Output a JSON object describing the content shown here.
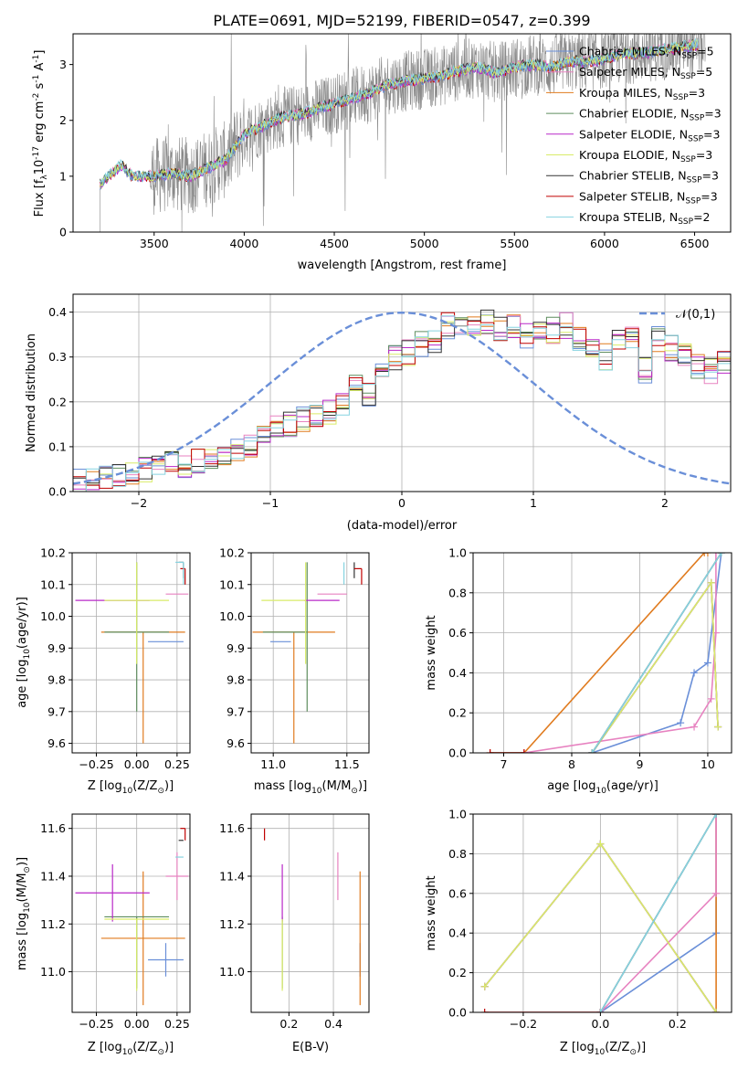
{
  "figure_title": "PLATE=0691, MJD=52199, FIBERID=0547, z=0.399",
  "legend_labels": [
    "Chabrier MILES, N",
    "Salpeter MILES, N",
    "Kroupa MILES, N",
    "Chabrier ELODIE, N",
    "Salpeter ELODIE, N",
    "Kroupa ELODIE, N",
    "Chabrier STELIB, N",
    "Salpeter STELIB, N",
    "Kroupa STELIB, N"
  ],
  "legend_subscript": "SSP",
  "legend_counts": [
    "=5",
    "=5",
    "=3",
    "=3",
    "=3",
    "=3",
    "=3",
    "=3",
    "=2"
  ],
  "colors": {
    "blue": "#6a8fd8",
    "orange": "#e07b1f",
    "pink": "#e782c0",
    "green": "#5f8e5f",
    "purple": "#b928c8",
    "yellow": "#d9ec68",
    "black": "#333333",
    "red": "#c00000",
    "cyan": "#86d3e0",
    "data": "#8a8a8a",
    "grid": "#b0b0b0"
  },
  "chart_data": [
    {
      "id": "spectrum",
      "type": "line",
      "xlabel": "wavelength [Angstrom, rest frame]",
      "ylabel_main": "Flux [f",
      "ylabel_sub": "λ",
      "ylabel_rest": "10",
      "ylabel_exp1": "-17",
      "ylabel_units": " erg cm",
      "ylabel_exp2": "-2",
      "ylabel_s": " s",
      "ylabel_exp3": "-1",
      "ylabel_A": " A",
      "ylabel_exp4": "-1",
      "ylabel_end": "]",
      "xlim": [
        3050,
        6700
      ],
      "ylim": [
        0,
        3.55
      ],
      "xticks": [
        3500,
        4000,
        4500,
        5000,
        5500,
        6000,
        6500
      ],
      "yticks": [
        0,
        1,
        2,
        3
      ],
      "model_anchor_x": [
        3200,
        3260,
        3320,
        3380,
        3500,
        3600,
        3700,
        3800,
        3900,
        4000,
        4100,
        4200,
        4300,
        4400,
        4500,
        4600,
        4700,
        4800,
        4900,
        5000,
        5100,
        5200,
        5300,
        5400,
        5500,
        5600,
        5700,
        5800,
        5900,
        6000,
        6100,
        6200,
        6300,
        6400,
        6500
      ],
      "model_anchor_y": [
        0.85,
        1.05,
        1.2,
        1.0,
        1.0,
        1.05,
        1.0,
        1.15,
        1.3,
        1.75,
        1.9,
        2.05,
        2.1,
        2.2,
        2.3,
        2.4,
        2.5,
        2.65,
        2.7,
        2.75,
        2.8,
        2.9,
        2.95,
        2.85,
        2.95,
        3.0,
        2.95,
        3.05,
        3.05,
        3.1,
        3.2,
        3.2,
        3.25,
        3.3,
        3.35
      ],
      "data_range": [
        3200,
        6560
      ],
      "model_range": [
        3200,
        6520
      ]
    },
    {
      "id": "residuals",
      "type": "step",
      "xlabel": "(data-model)/error",
      "ylabel": "Normed distribution",
      "xlim": [
        -2.5,
        2.5
      ],
      "ylim": [
        0,
        0.44
      ],
      "xticks": [
        -2,
        -1,
        0,
        1,
        2
      ],
      "yticks": [
        0.0,
        0.1,
        0.2,
        0.3,
        0.4
      ],
      "gaussian_label": "𝒩(0,1)",
      "bin_width": 0.1,
      "bin_start": -2.5,
      "base_values": [
        0.02,
        0.025,
        0.03,
        0.035,
        0.045,
        0.05,
        0.055,
        0.06,
        0.06,
        0.065,
        0.08,
        0.085,
        0.09,
        0.1,
        0.12,
        0.14,
        0.15,
        0.16,
        0.17,
        0.18,
        0.2,
        0.23,
        0.22,
        0.28,
        0.3,
        0.31,
        0.33,
        0.34,
        0.37,
        0.38,
        0.37,
        0.38,
        0.36,
        0.37,
        0.35,
        0.37,
        0.36,
        0.37,
        0.34,
        0.32,
        0.3,
        0.33,
        0.34,
        0.27,
        0.34,
        0.32,
        0.3,
        0.28,
        0.27,
        0.29
      ]
    },
    {
      "id": "age_vs_Z",
      "type": "errorbar",
      "xlabel_pre": "Z [log",
      "xlabel_sub": "10",
      "xlabel_post": "(Z/Z",
      "xlabel_sun": "⊙",
      "xlabel_end": ")]",
      "ylabel_pre": "age  [log",
      "ylabel_sub": "10",
      "ylabel_post": "(age/yr)]",
      "xlim": [
        -0.4,
        0.33
      ],
      "ylim": [
        9.57,
        10.2
      ],
      "xticks": [
        -0.25,
        0.0,
        0.25
      ],
      "yticks": [
        9.6,
        9.7,
        9.8,
        9.9,
        10.0,
        10.1,
        10.2
      ]
    },
    {
      "id": "age_vs_mass",
      "type": "errorbar",
      "xlabel_pre": "mass [log",
      "xlabel_sub": "10",
      "xlabel_post": "(M/M",
      "xlabel_sun": "⊙",
      "xlabel_end": ")]",
      "xlim": [
        10.85,
        11.65
      ],
      "ylim": [
        9.57,
        10.2
      ],
      "xticks": [
        11.0,
        11.5
      ],
      "yticks": [
        9.6,
        9.7,
        9.8,
        9.9,
        10.0,
        10.1,
        10.2
      ]
    },
    {
      "id": "cumweight_age",
      "type": "line",
      "xlabel_pre": "age  [log",
      "xlabel_sub": "10",
      "xlabel_post": "(age/yr)]",
      "ylabel": "mass weight",
      "xlim": [
        6.55,
        10.35
      ],
      "ylim": [
        0,
        1.0
      ],
      "xticks": [
        7,
        8,
        9,
        10
      ],
      "yticks": [
        0.0,
        0.2,
        0.4,
        0.6,
        0.8,
        1.0
      ]
    },
    {
      "id": "mass_vs_Z",
      "type": "errorbar",
      "ylabel_pre": "mass [log",
      "ylabel_sub": "10",
      "ylabel_post": "(M/M",
      "ylabel_sun": "⊙",
      "ylabel_end": ")]",
      "xlabel_pre": "Z [log",
      "xlabel_sub": "10",
      "xlabel_post": "(Z/Z",
      "xlabel_sun": "⊙",
      "xlabel_end": ")]",
      "xlim": [
        -0.4,
        0.33
      ],
      "ylim": [
        10.83,
        11.66
      ],
      "xticks": [
        -0.25,
        0.0,
        0.25
      ],
      "yticks": [
        11.0,
        11.2,
        11.4,
        11.6
      ]
    },
    {
      "id": "mass_vs_ebv",
      "type": "errorbar",
      "xlabel": "E(B-V)",
      "xlim": [
        0.03,
        0.56
      ],
      "ylim": [
        10.83,
        11.66
      ],
      "xticks": [
        0.2,
        0.4
      ],
      "yticks": [
        11.0,
        11.2,
        11.4,
        11.6
      ]
    },
    {
      "id": "cumweight_Z",
      "type": "line",
      "xlabel_pre": "Z [log",
      "xlabel_sub": "10",
      "xlabel_post": "(Z/Z",
      "xlabel_sun": "⊙",
      "xlabel_end": ")]",
      "ylabel": "mass weight",
      "xlim": [
        -0.33,
        0.34
      ],
      "ylim": [
        0,
        1.0
      ],
      "xticks": [
        -0.2,
        0.0,
        0.2
      ],
      "yticks": [
        0.0,
        0.2,
        0.4,
        0.6,
        0.8,
        1.0
      ]
    }
  ],
  "series": [
    {
      "name": "Chabrier MILES",
      "color": "blue",
      "Z": 0.18,
      "Zerr": [
        0.11,
        0.11
      ],
      "age": 9.92,
      "age_err": [
        0.0,
        0.0
      ],
      "mass": 11.05,
      "mass_err": [
        0.07,
        0.07
      ],
      "ebv": 0.52,
      "ebv_err": [
        0.0,
        0.0
      ],
      "cum_age_x": [
        8.3,
        9.6,
        9.8,
        10.0,
        10.2
      ],
      "cum_age_y": [
        0.0,
        0.15,
        0.4,
        0.45,
        1.0
      ],
      "cum_Z_x": [
        0.0,
        0.3,
        0.3
      ],
      "cum_Z_y": [
        0.0,
        0.4,
        1.0
      ]
    },
    {
      "name": "Salpeter MILES",
      "color": "orange",
      "Z": 0.04,
      "Zerr": [
        0.26,
        0.26
      ],
      "age": 9.95,
      "age_err": [
        0.35,
        0.0
      ],
      "mass": 11.14,
      "mass_err": [
        0.28,
        0.28
      ],
      "ebv": 0.52,
      "ebv_err": [
        0.0,
        0.0
      ],
      "cum_age_x": [
        6.8,
        7.3,
        9.95,
        10.0
      ],
      "cum_age_y": [
        0.0,
        0.0,
        1.0,
        1.0
      ],
      "cum_Z_x": [
        0.3,
        0.3
      ],
      "cum_Z_y": [
        0.0,
        1.0
      ]
    },
    {
      "name": "Kroupa MILES",
      "color": "pink",
      "Z": 0.25,
      "Zerr": [
        0.07,
        0.07
      ],
      "age": 10.07,
      "age_err": [
        0.0,
        0.0
      ],
      "mass": 11.4,
      "mass_err": [
        0.1,
        0.1
      ],
      "ebv": 0.42,
      "ebv_err": [
        0.0,
        0.0
      ],
      "cum_age_x": [
        7.3,
        9.8,
        10.05,
        10.12,
        10.12
      ],
      "cum_age_y": [
        0.0,
        0.13,
        0.27,
        0.6,
        1.0
      ],
      "cum_Z_x": [
        0.0,
        0.3,
        0.3
      ],
      "cum_Z_y": [
        0.0,
        0.6,
        1.0
      ]
    },
    {
      "name": "Chabrier ELODIE",
      "color": "green",
      "Z": 0.0,
      "Zerr": [
        0.2,
        0.2
      ],
      "age": 9.95,
      "age_err": [
        0.25,
        0.22
      ],
      "mass": 11.23,
      "mass_err": [
        0.3,
        0.0
      ],
      "ebv": 0.17,
      "ebv_err": [
        0.0,
        0.0
      ],
      "cum_age_x": [
        8.3,
        10.05,
        10.15
      ],
      "cum_age_y": [
        0.0,
        0.85,
        0.13
      ],
      "cum_Z_x": [
        -0.3,
        0.0,
        0.3
      ],
      "cum_Z_y": [
        0.13,
        0.85,
        0.0
      ]
    },
    {
      "name": "Salpeter ELODIE",
      "color": "purple",
      "Z": -0.15,
      "Zerr": [
        0.23,
        0.23
      ],
      "age": 10.05,
      "age_err": [
        0.0,
        0.0
      ],
      "mass": 11.33,
      "mass_err": [
        0.12,
        0.12
      ],
      "ebv": 0.17,
      "ebv_err": [
        0.0,
        0.0
      ],
      "cum_age_x": [
        8.3,
        10.05,
        10.15
      ],
      "cum_age_y": [
        0.0,
        0.85,
        0.13
      ],
      "cum_Z_x": [
        -0.3,
        0.0,
        0.3
      ],
      "cum_Z_y": [
        0.13,
        0.85,
        0.0
      ]
    },
    {
      "name": "Kroupa ELODIE",
      "color": "yellow",
      "Z": 0.0,
      "Zerr": [
        0.2,
        0.2
      ],
      "age": 10.05,
      "age_err": [
        0.2,
        0.12
      ],
      "mass": 11.22,
      "mass_err": [
        0.3,
        0.0
      ],
      "ebv": 0.17,
      "ebv_err": [
        0.0,
        0.0
      ],
      "cum_age_x": [
        8.3,
        10.05,
        10.15
      ],
      "cum_age_y": [
        0.0,
        0.85,
        0.13
      ],
      "cum_Z_x": [
        -0.3,
        0.0,
        0.3
      ],
      "cum_Z_y": [
        0.13,
        0.85,
        0.0
      ]
    },
    {
      "name": "Chabrier STELIB",
      "color": "black",
      "Z": 0.29,
      "Zerr": [
        0.03,
        0.0
      ],
      "age": 10.17,
      "age_err": [
        0.05,
        0.0
      ],
      "mass": 11.55,
      "mass_err": [
        0.0,
        0.0
      ],
      "ebv": 0.09,
      "ebv_err": [
        0.0,
        0.0
      ],
      "cum_age_x": [
        8.3,
        10.2
      ],
      "cum_age_y": [
        0.0,
        1.0
      ],
      "cum_Z_x": [
        0.0,
        0.3
      ],
      "cum_Z_y": [
        0.0,
        1.0
      ]
    },
    {
      "name": "Salpeter STELIB",
      "color": "red",
      "Z": 0.3,
      "Zerr": [
        0.03,
        0.0
      ],
      "age": 10.15,
      "age_err": [
        0.05,
        0.0
      ],
      "mass": 11.6,
      "mass_err": [
        0.05,
        0.0
      ],
      "ebv": 0.09,
      "ebv_err": [
        0.0,
        0.0
      ],
      "cum_age_x": [
        6.8,
        7.3
      ],
      "cum_age_y": [
        0.0,
        0.0
      ],
      "cum_Z_x": [
        -0.3,
        0.0
      ],
      "cum_Z_y": [
        0.0,
        0.0
      ]
    },
    {
      "name": "Kroupa STELIB",
      "color": "cyan",
      "Z": 0.29,
      "Zerr": [
        0.05,
        0.0
      ],
      "age": 10.17,
      "age_err": [
        0.07,
        0.0
      ],
      "mass": 11.48,
      "mass_err": [
        0.0,
        0.0
      ],
      "ebv": 0.09,
      "ebv_err": [
        0.0,
        0.0
      ],
      "cum_age_x": [
        8.3,
        10.2
      ],
      "cum_age_y": [
        0.0,
        1.0
      ],
      "cum_Z_x": [
        0.0,
        0.3
      ],
      "cum_Z_y": [
        0.0,
        1.0
      ]
    }
  ]
}
